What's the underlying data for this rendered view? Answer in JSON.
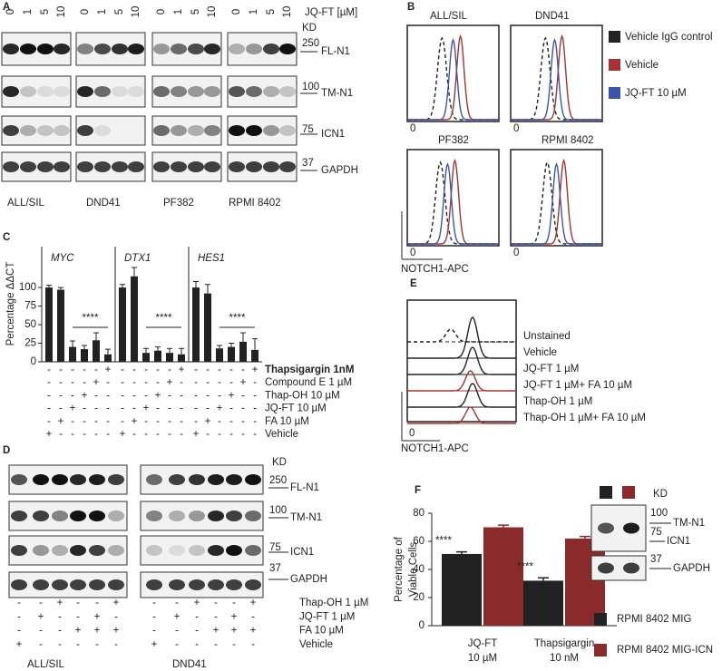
{
  "panel_a": {
    "label": "A",
    "doses": [
      "0",
      "1",
      "5",
      "10"
    ],
    "dose_label": "JQ-FT [µM]",
    "kd": "KD",
    "markers": [
      "250",
      "100",
      "75",
      "37"
    ],
    "proteins": [
      "FL-N1",
      "TM-N1",
      "ICN1",
      "GAPDH"
    ],
    "cell_lines": [
      "ALL/SIL",
      "DND41",
      "PF382",
      "RPMI 8402"
    ]
  },
  "panel_b": {
    "label": "B",
    "titles": [
      "ALL/SIL",
      "DND41",
      "PF382",
      "RPMI 8402"
    ],
    "zero": "0",
    "x_label": "NOTCH1-APC",
    "legend": [
      {
        "name": "Vehicle IgG control",
        "color": "#222222"
      },
      {
        "name": "Vehicle",
        "color": "#a83232"
      },
      {
        "name": "JQ-FT 10 µM",
        "color": "#3a55b0"
      }
    ]
  },
  "panel_c": {
    "label": "C",
    "treatments": [
      "Thapsigargin 1nM",
      "Compound E 1 µM",
      "Thap-OH 10 µM",
      "JQ-FT 10 µM",
      "FA 10 µM",
      "Vehicle"
    ],
    "signs": [
      [
        "-",
        "-",
        "-",
        "-",
        "-",
        "+"
      ],
      [
        "-",
        "-",
        "-",
        "-",
        "+",
        "-"
      ],
      [
        "-",
        "-",
        "-",
        "+",
        "-",
        "-"
      ],
      [
        "-",
        "-",
        "+",
        "-",
        "-",
        "-"
      ],
      [
        "-",
        "+",
        "-",
        "-",
        "-",
        "-"
      ],
      [
        "+",
        "-",
        "-",
        "-",
        "-",
        "-"
      ]
    ]
  },
  "panel_d": {
    "label": "D",
    "kd": "KD",
    "markers": [
      "250",
      "100",
      "75",
      "37"
    ],
    "proteins": [
      "FL-N1",
      "TM-N1",
      "ICN1",
      "GAPDH"
    ],
    "treatments": [
      "Thap-OH 1 µM",
      "JQ-FT 1 µM",
      "FA 10 µM",
      "Vehicle"
    ],
    "signs": [
      [
        "-",
        "-",
        "+",
        "-",
        "-",
        "+"
      ],
      [
        "-",
        "+",
        "-",
        "-",
        "+",
        "-"
      ],
      [
        "-",
        "-",
        "-",
        "+",
        "+",
        "+"
      ],
      [
        "+",
        "-",
        "-",
        "-",
        "-",
        "-"
      ]
    ],
    "cell_lines": [
      "ALL/SIL",
      "DND41"
    ]
  },
  "panel_e": {
    "label": "E",
    "zero": "0",
    "x_label": "NOTCH1-APC",
    "lines": [
      {
        "label": "Unstained",
        "color": "#222222",
        "dashed": true
      },
      {
        "label": "Vehicle",
        "color": "#222222"
      },
      {
        "label": "JQ-FT 1 µM",
        "color": "#222222"
      },
      {
        "label": "JQ-FT 1 µM+ FA 10 µM",
        "color": "#a83232"
      },
      {
        "label": "Thap-OH 1 µM",
        "color": "#222222"
      },
      {
        "label": "Thap-OH 1 µM+ FA 10 µM",
        "color": "#a83232"
      }
    ]
  },
  "panel_f": {
    "label": "F",
    "kd": "KD",
    "markers": [
      "100",
      "75",
      "37"
    ],
    "proteins": [
      "TM-N1",
      "ICN1",
      "GAPDH"
    ]
  },
  "chart_data": [
    {
      "type": "bar",
      "title": "MYC",
      "y_label": "Percentage ΔΔCT",
      "values": [
        100,
        97,
        20,
        17,
        29,
        10
      ],
      "errors": [
        3,
        3,
        8,
        5,
        10,
        7
      ],
      "color": "#222222",
      "ylim": [
        0,
        155
      ],
      "yticks": [
        0,
        25,
        50,
        75,
        100
      ],
      "annotation": "****"
    },
    {
      "type": "bar",
      "title": "DTX1",
      "values": [
        100,
        115,
        12,
        15,
        12,
        10
      ],
      "errors": [
        4,
        12,
        6,
        5,
        6,
        8
      ],
      "color": "#222222",
      "ylim": [
        0,
        155
      ],
      "annotation": "****"
    },
    {
      "type": "bar",
      "title": "HES1",
      "values": [
        100,
        92,
        18,
        20,
        27,
        16
      ],
      "errors": [
        8,
        12,
        4,
        5,
        12,
        15
      ],
      "color": "#222222",
      "ylim": [
        0,
        155
      ],
      "annotation": "****"
    },
    {
      "type": "grouped_bar",
      "y_label": [
        "Percentage of",
        "Viable Cells"
      ],
      "categories": [
        [
          "JQ-FT",
          "10 µM"
        ],
        [
          "Thapsigargin",
          "10 nM"
        ]
      ],
      "series": [
        {
          "name": "RPMI 8402 MIG",
          "color": "#222222",
          "values": [
            51,
            32
          ],
          "errors": [
            1.5,
            2
          ]
        },
        {
          "name": "RPMI 8402 MIG-ICN",
          "color": "#8b2a2a",
          "values": [
            70,
            62
          ],
          "errors": [
            1.5,
            1.5
          ]
        }
      ],
      "ylim": [
        0,
        80
      ],
      "yticks": [
        0,
        20,
        40,
        60,
        80
      ],
      "annotations": [
        "****",
        "****"
      ]
    }
  ]
}
